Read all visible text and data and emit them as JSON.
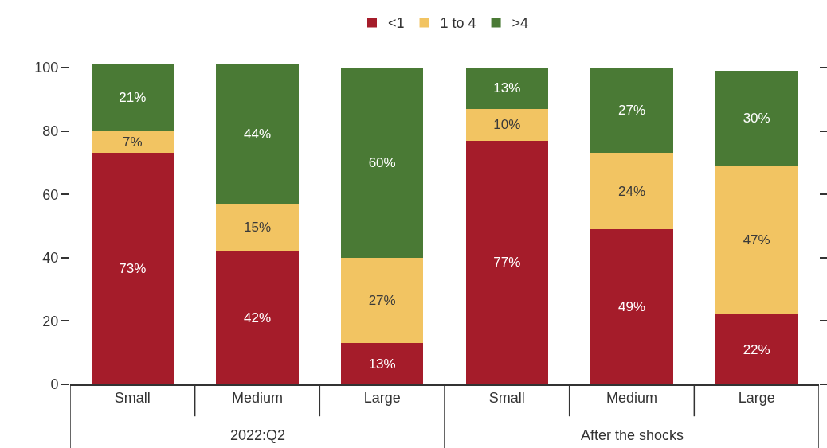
{
  "chart_data": {
    "type": "bar",
    "stacked": true,
    "categories": [
      "Small",
      "Medium",
      "Large",
      "Small",
      "Medium",
      "Large"
    ],
    "annotations": [
      "2022:Q2",
      "After the shocks"
    ],
    "series": [
      {
        "name": "<1",
        "color": "#a51c2a",
        "values": [
          73,
          42,
          13,
          77,
          49,
          22
        ],
        "value_labels": [
          "73%",
          "42%",
          "13%",
          "77%",
          "49%",
          "22%"
        ]
      },
      {
        "name": "1 to 4",
        "color": "#f2c462",
        "values": [
          7,
          15,
          27,
          10,
          24,
          47
        ],
        "value_labels": [
          "7%",
          "15%",
          "27%",
          "10%",
          "24%",
          "47%"
        ]
      },
      {
        "name": ">4",
        "color": "#4a7a35",
        "values": [
          21,
          44,
          60,
          13,
          27,
          30
        ],
        "value_labels": [
          "21%",
          "44%",
          "60%",
          "13%",
          "27%",
          "30%"
        ]
      }
    ],
    "ylim": [
      0,
      101
    ],
    "yticks": [
      0,
      20,
      40,
      60,
      80,
      100
    ],
    "grid": false,
    "legend": "top"
  }
}
